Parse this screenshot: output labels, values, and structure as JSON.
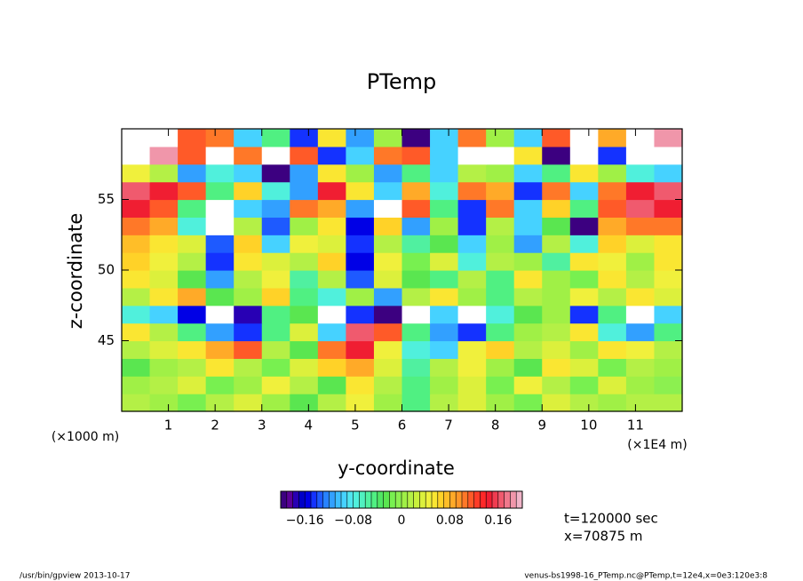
{
  "chart_data": {
    "type": "heatmap",
    "title": "PTemp",
    "x_label": "y-coordinate",
    "y_label": "z-coordinate",
    "x_unit": "(×1E4 m)",
    "y_unit": "(×1000 m)",
    "annotations": [
      "t=120000 sec",
      "x=70875 m"
    ],
    "footer_left": "/usr/bin/gpview  2013-10-17",
    "footer_right": "venus-bs1998-16_PTemp.nc@PTemp,t=12e4,x=0e3:120e3:8",
    "xlim": [
      0,
      12
    ],
    "ylim": [
      40,
      60
    ],
    "xticks": [
      1,
      2,
      3,
      4,
      5,
      6,
      7,
      8,
      9,
      10,
      11
    ],
    "yticks": [
      45,
      50,
      55
    ],
    "x": [
      0.3,
      0.9,
      1.5,
      2.1,
      2.7,
      3.3,
      3.9,
      4.5,
      5.1,
      5.7,
      6.3,
      6.9,
      7.5,
      8.1,
      8.7,
      9.3,
      9.9,
      10.5,
      11.1,
      11.7
    ],
    "y": [
      40.625,
      41.875,
      43.125,
      44.375,
      45.625,
      46.875,
      48.125,
      49.375,
      50.625,
      51.875,
      53.125,
      54.375,
      55.625,
      56.875,
      58.125,
      59.375
    ],
    "z": [
      [
        0.02,
        0.0,
        -0.02,
        0.02,
        0.03,
        0.0,
        -0.03,
        0.02,
        0.04,
        0.0,
        -0.04,
        0.02,
        0.03,
        0.0,
        -0.02,
        0.03,
        0.02,
        0.0,
        0.02,
        0.01
      ],
      [
        0.0,
        0.02,
        0.03,
        -0.02,
        0.0,
        0.04,
        0.02,
        -0.03,
        0.05,
        0.02,
        -0.05,
        0.0,
        0.03,
        -0.02,
        0.04,
        0.02,
        -0.02,
        0.03,
        0.0,
        -0.01
      ],
      [
        -0.03,
        0.0,
        0.02,
        0.05,
        0.02,
        -0.02,
        0.03,
        0.06,
        0.08,
        0.03,
        -0.06,
        0.02,
        0.04,
        0.0,
        -0.03,
        0.05,
        0.03,
        -0.02,
        0.02,
        0.0
      ],
      [
        0.02,
        0.03,
        0.05,
        0.08,
        0.12,
        0.02,
        -0.03,
        0.1,
        0.15,
        0.04,
        -0.08,
        -0.1,
        0.04,
        0.06,
        0.02,
        0.03,
        0.0,
        0.05,
        0.04,
        0.02
      ],
      [
        0.05,
        0.02,
        -0.05,
        -0.12,
        -0.15,
        -0.05,
        0.03,
        -0.1,
        0.16,
        0.12,
        -0.05,
        -0.12,
        -0.15,
        -0.05,
        0.0,
        0.02,
        0.05,
        -0.08,
        -0.12,
        -0.05
      ],
      [
        -0.08,
        -0.1,
        -0.16,
        -0.22,
        -0.18,
        -0.05,
        -0.03,
        0.25,
        -0.15,
        -0.2,
        0.25,
        -0.1,
        0.25,
        -0.08,
        -0.03,
        0.0,
        -0.15,
        -0.05,
        -0.22,
        -0.1
      ],
      [
        0.02,
        0.05,
        0.08,
        -0.03,
        0.0,
        0.06,
        -0.05,
        -0.08,
        0.0,
        -0.12,
        0.02,
        0.05,
        0.0,
        -0.04,
        0.02,
        0.0,
        0.04,
        0.02,
        0.05,
        0.03
      ],
      [
        0.05,
        0.03,
        -0.03,
        -0.12,
        0.02,
        0.04,
        -0.06,
        0.02,
        -0.14,
        0.03,
        -0.03,
        -0.05,
        0.02,
        -0.04,
        0.05,
        0.0,
        -0.02,
        0.05,
        0.02,
        0.04
      ],
      [
        0.06,
        0.04,
        0.02,
        -0.15,
        0.05,
        0.03,
        0.02,
        0.06,
        -0.16,
        0.04,
        -0.02,
        0.03,
        -0.08,
        0.02,
        0.0,
        -0.06,
        0.05,
        0.04,
        0.0,
        0.05
      ],
      [
        0.07,
        0.05,
        0.03,
        -0.14,
        0.06,
        -0.1,
        0.04,
        0.03,
        -0.15,
        0.02,
        -0.06,
        -0.03,
        -0.1,
        0.0,
        -0.12,
        0.02,
        -0.08,
        0.06,
        0.03,
        0.05
      ],
      [
        0.1,
        0.08,
        -0.08,
        -0.22,
        0.02,
        -0.14,
        0.0,
        0.05,
        -0.16,
        0.06,
        -0.12,
        0.0,
        -0.15,
        0.02,
        -0.1,
        -0.03,
        -0.2,
        0.08,
        0.1,
        0.1
      ],
      [
        0.14,
        0.12,
        -0.05,
        -0.25,
        -0.1,
        -0.12,
        0.1,
        0.08,
        -0.12,
        -0.22,
        0.12,
        -0.05,
        -0.15,
        0.1,
        -0.1,
        0.06,
        -0.05,
        0.12,
        0.16,
        0.15
      ],
      [
        0.16,
        0.15,
        0.12,
        -0.05,
        0.06,
        -0.08,
        -0.12,
        0.15,
        0.05,
        -0.1,
        0.08,
        -0.08,
        0.1,
        0.08,
        -0.15,
        0.1,
        -0.1,
        0.1,
        0.15,
        0.16
      ],
      [
        0.04,
        0.02,
        -0.12,
        -0.08,
        -0.1,
        -0.2,
        -0.12,
        0.05,
        0.0,
        -0.12,
        -0.05,
        -0.1,
        0.02,
        0.0,
        -0.1,
        -0.05,
        0.05,
        0.0,
        -0.08,
        -0.1
      ],
      [
        -0.25,
        0.18,
        0.12,
        0.25,
        0.1,
        0.25,
        0.12,
        -0.15,
        -0.1,
        0.1,
        0.12,
        -0.1,
        0.25,
        0.25,
        0.05,
        -0.2,
        0.25,
        -0.15,
        -0.25,
        -0.25
      ],
      [
        0.25,
        0.25,
        0.12,
        0.1,
        -0.1,
        -0.05,
        -0.15,
        0.05,
        -0.12,
        0.0,
        -0.2,
        -0.1,
        0.1,
        0.0,
        -0.1,
        0.12,
        0.25,
        0.08,
        0.25,
        0.18
      ]
    ],
    "colorbar": {
      "lim": [
        -0.2,
        0.2
      ],
      "ticks": [
        {
          "value": -0.16,
          "label": "−0.16"
        },
        {
          "value": -0.08,
          "label": "−0.08"
        },
        0,
        0.08,
        0.16
      ],
      "colors": [
        "#3c0080",
        "#5a0096",
        "#2800b4",
        "#0000c8",
        "#0000e6",
        "#1432ff",
        "#1e5aff",
        "#2882ff",
        "#32a0ff",
        "#3cbeff",
        "#46d2ff",
        "#50e6f0",
        "#50f0dc",
        "#50f0c0",
        "#50f0a0",
        "#50f082",
        "#50e664",
        "#5ae650",
        "#78f050",
        "#8cf050",
        "#a0f046",
        "#b4f046",
        "#c8f03c",
        "#dcf03c",
        "#f0f03c",
        "#fae632",
        "#ffd228",
        "#ffbe28",
        "#ffaa28",
        "#ff9628",
        "#ff7828",
        "#ff5a28",
        "#ff3c28",
        "#ff2828",
        "#f01e32",
        "#f03c50",
        "#f05a6e",
        "#f0788c",
        "#f096aa",
        "#f0b4c8"
      ],
      "out_of_range_color": "#ffffff"
    }
  }
}
